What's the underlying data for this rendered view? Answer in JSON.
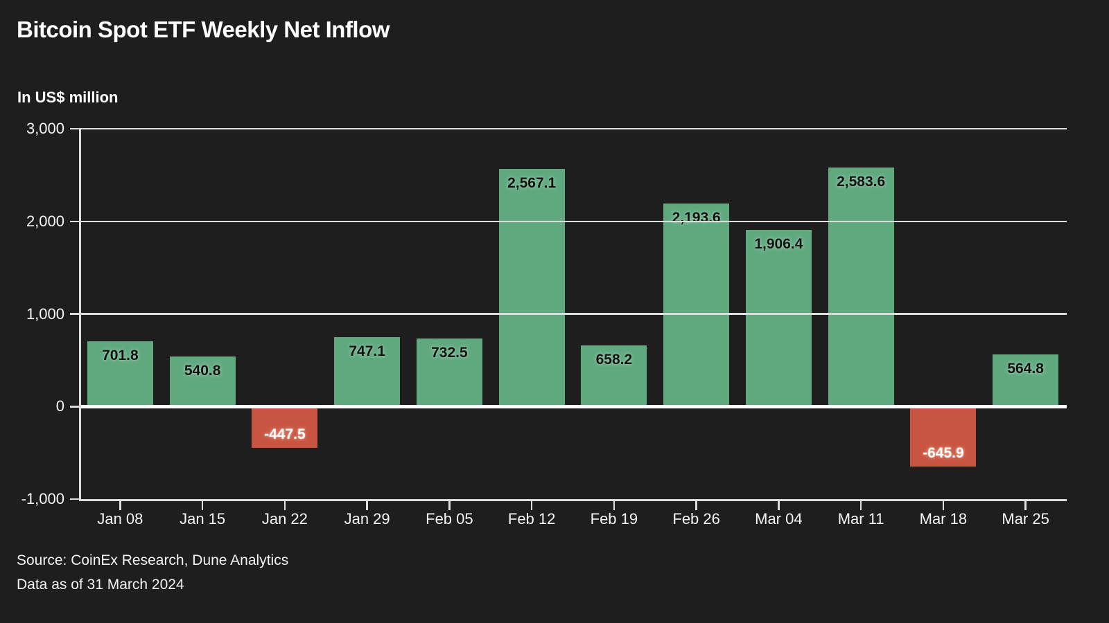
{
  "header": {
    "title": "Bitcoin Spot ETF Weekly Net Inflow",
    "units_label": "In US$ million"
  },
  "footer": {
    "source_line": "Source: CoinEx Research, Dune Analytics",
    "asof_line": "Data as of 31 March 2024"
  },
  "chart_data": {
    "type": "bar",
    "title": "Bitcoin Spot ETF Weekly Net Inflow",
    "subtitle": "In US$ million",
    "categories": [
      "Jan 08",
      "Jan 15",
      "Jan 22",
      "Jan 29",
      "Feb 05",
      "Feb 12",
      "Feb 19",
      "Feb 26",
      "Mar 04",
      "Mar 11",
      "Mar 18",
      "Mar 25"
    ],
    "values": [
      701.8,
      540.8,
      -447.5,
      747.1,
      732.5,
      2567.1,
      658.2,
      2193.6,
      1906.4,
      2583.6,
      -645.9,
      564.8
    ],
    "value_labels": [
      "701.8",
      "540.8",
      "-447.5",
      "747.1",
      "732.5",
      "2,567.1",
      "658.2",
      "2,193.6",
      "1,906.4",
      "2,583.6",
      "-645.9",
      "564.8"
    ],
    "ylim": [
      -1000,
      3000
    ],
    "yticks": [
      3000,
      2000,
      1000,
      0,
      -1000
    ],
    "ytick_labels": [
      "3,000",
      "2,000",
      "1,000",
      "0",
      "-1,000"
    ],
    "grid": "horizontal-gridlines-over-bars",
    "legend": "none",
    "colors": {
      "background": "#1e1e1e",
      "positive_bar": "#60a97f",
      "negative_bar": "#c75541",
      "gridline": "#dedede",
      "zero_line": "#ffffff",
      "axis": "#dedede",
      "text": "#ffffff"
    }
  }
}
